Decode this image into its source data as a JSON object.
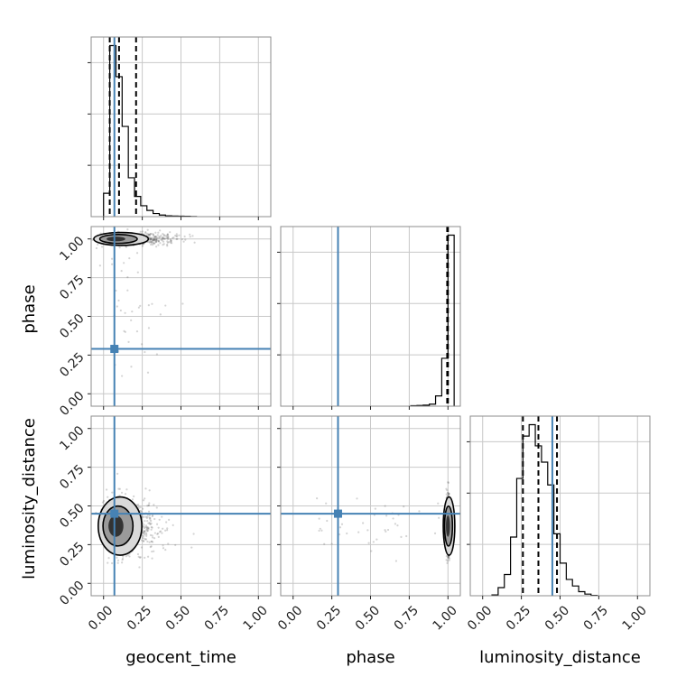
{
  "chart_data": {
    "type": "corner",
    "parameters": [
      "geocent_time",
      "phase",
      "luminosity_distance"
    ],
    "truths": {
      "geocent_time": 0.07,
      "phase": 0.29,
      "luminosity_distance": 0.45
    },
    "axis_range": [
      -0.08,
      1.08
    ],
    "ticks": [
      "0.00",
      "0.25",
      "0.50",
      "0.75",
      "1.00"
    ],
    "tick_values": [
      0.0,
      0.25,
      0.5,
      0.75,
      1.0
    ],
    "grid": true,
    "histograms": {
      "geocent_time": {
        "bin_edges": [
          0.0,
          0.04,
          0.08,
          0.12,
          0.16,
          0.2,
          0.24,
          0.28,
          0.32,
          0.36,
          0.4,
          0.44,
          0.48,
          0.52,
          0.56,
          0.6
        ],
        "counts": [
          0.15,
          1.1,
          0.9,
          0.58,
          0.25,
          0.13,
          0.07,
          0.04,
          0.02,
          0.01,
          0.005,
          0.004,
          0.003,
          0.002,
          0.001
        ],
        "quantiles": [
          0.04,
          0.1,
          0.21
        ]
      },
      "phase": {
        "bin_edges": [
          0.76,
          0.8,
          0.84,
          0.88,
          0.92,
          0.96,
          1.0,
          1.04
        ],
        "counts": [
          0.003,
          0.004,
          0.006,
          0.012,
          0.06,
          0.28,
          1.0
        ],
        "quantiles": [
          0.995,
          1.0
        ]
      },
      "luminosity_distance": {
        "bin_edges": [
          0.06,
          0.1,
          0.14,
          0.18,
          0.22,
          0.26,
          0.3,
          0.34,
          0.38,
          0.42,
          0.46,
          0.5,
          0.54,
          0.58,
          0.62,
          0.66,
          0.7,
          0.74
        ],
        "counts": [
          0.005,
          0.05,
          0.13,
          0.36,
          0.72,
          0.98,
          1.05,
          0.92,
          0.82,
          0.68,
          0.38,
          0.2,
          0.1,
          0.06,
          0.025,
          0.01,
          0.002
        ],
        "quantiles": [
          0.26,
          0.36,
          0.48
        ]
      }
    },
    "pairs": [
      {
        "x": "geocent_time",
        "y": "phase",
        "center": [
          0.08,
          1.0
        ],
        "spread": [
          0.1,
          0.02
        ]
      },
      {
        "x": "geocent_time",
        "y": "luminosity_distance",
        "center": [
          0.08,
          0.37
        ],
        "spread": [
          0.08,
          0.09
        ]
      },
      {
        "x": "phase",
        "y": "luminosity_distance",
        "center": [
          1.0,
          0.37
        ],
        "spread": [
          0.006,
          0.09
        ]
      }
    ]
  }
}
